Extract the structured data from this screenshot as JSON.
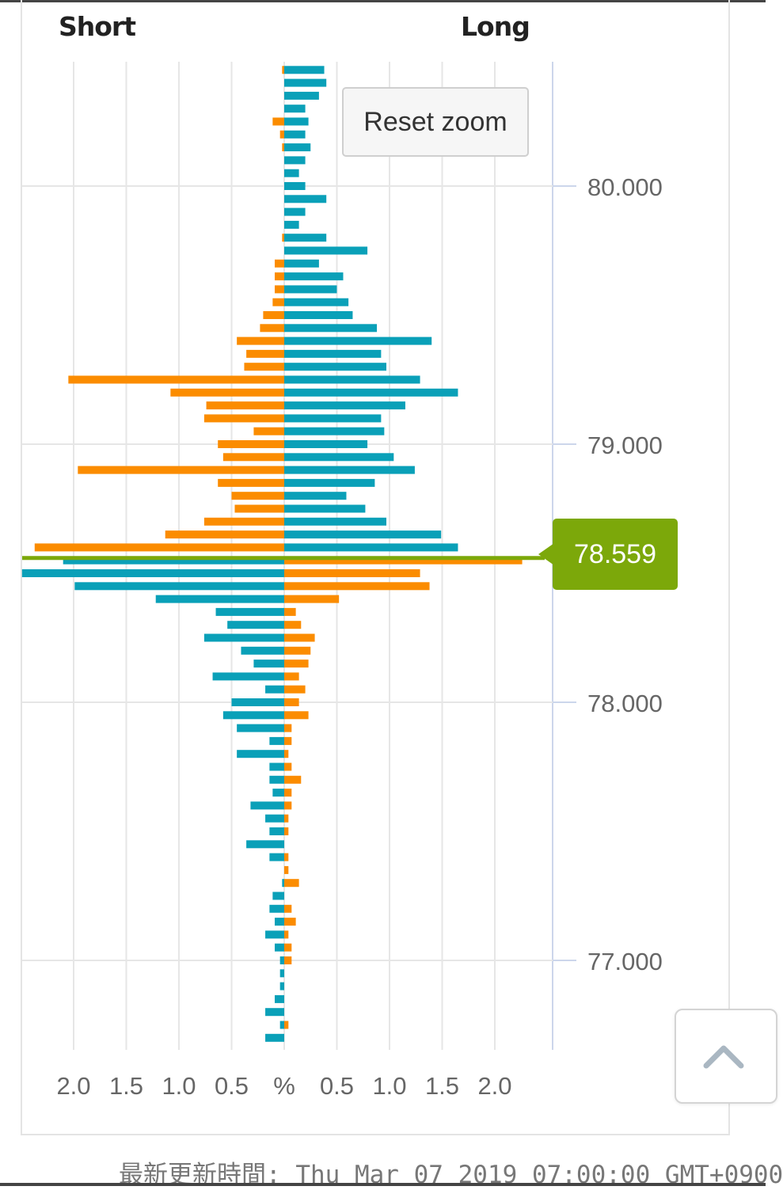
{
  "header": {
    "short_label": "Short",
    "long_label": "Long"
  },
  "reset_button": {
    "label": "Reset zoom"
  },
  "current_price": {
    "label": "78.559",
    "value": 78.559,
    "color": "#7ca80a"
  },
  "footer": {
    "text": "最新更新時間: Thu Mar 07 2019 07:00:00 GMT+0900"
  },
  "colors": {
    "orange": "#fb8c00",
    "teal": "#0aa0b8",
    "grid": "#e6e6e6",
    "axis": "#ccd6eb"
  },
  "chart_data": {
    "type": "bar",
    "title": "",
    "xlabel": "%",
    "ylabel": "",
    "x_tick_labels": [
      "2.0",
      "1.5",
      "1.0",
      "0.5",
      "%",
      "0.5",
      "1.0",
      "1.5",
      "2.0"
    ],
    "y_tick_labels": [
      "80.000",
      "79.000",
      "78.000",
      "77.000"
    ],
    "y_ticks": [
      80.0,
      79.0,
      78.0,
      77.0
    ],
    "ylim": [
      76.69,
      80.47
    ],
    "xlim": [
      -2.5,
      2.5
    ],
    "series": [
      {
        "name": "Short",
        "rows": [
          {
            "price": 80.45,
            "value": 0.02
          },
          {
            "price": 80.25,
            "value": 0.11
          },
          {
            "price": 80.2,
            "value": 0.04
          },
          {
            "price": 80.15,
            "value": 0.02
          },
          {
            "price": 79.8,
            "value": 0.02
          },
          {
            "price": 79.7,
            "value": 0.09
          },
          {
            "price": 79.65,
            "value": 0.09
          },
          {
            "price": 79.6,
            "value": 0.09
          },
          {
            "price": 79.55,
            "value": 0.11
          },
          {
            "price": 79.5,
            "value": 0.2
          },
          {
            "price": 79.45,
            "value": 0.23
          },
          {
            "price": 79.4,
            "value": 0.45
          },
          {
            "price": 79.35,
            "value": 0.36
          },
          {
            "price": 79.3,
            "value": 0.38
          },
          {
            "price": 79.25,
            "value": 2.05
          },
          {
            "price": 79.2,
            "value": 1.08
          },
          {
            "price": 79.15,
            "value": 0.74
          },
          {
            "price": 79.1,
            "value": 0.76
          },
          {
            "price": 79.05,
            "value": 0.29
          },
          {
            "price": 79.0,
            "value": 0.63
          },
          {
            "price": 78.95,
            "value": 0.58
          },
          {
            "price": 78.9,
            "value": 1.96
          },
          {
            "price": 78.85,
            "value": 0.63
          },
          {
            "price": 78.8,
            "value": 0.5
          },
          {
            "price": 78.75,
            "value": 0.47
          },
          {
            "price": 78.7,
            "value": 0.76
          },
          {
            "price": 78.65,
            "value": 1.13
          },
          {
            "price": 78.6,
            "value": 2.37
          },
          {
            "price": 78.55,
            "value": 2.1
          },
          {
            "price": 78.5,
            "value": 2.49
          },
          {
            "price": 78.45,
            "value": 1.99
          },
          {
            "price": 78.4,
            "value": 1.22
          },
          {
            "price": 78.35,
            "value": 0.65
          },
          {
            "price": 78.3,
            "value": 0.54
          },
          {
            "price": 78.25,
            "value": 0.76
          },
          {
            "price": 78.2,
            "value": 0.41
          },
          {
            "price": 78.15,
            "value": 0.29
          },
          {
            "price": 78.1,
            "value": 0.68
          },
          {
            "price": 78.05,
            "value": 0.18
          },
          {
            "price": 78.0,
            "value": 0.5
          },
          {
            "price": 77.95,
            "value": 0.58
          },
          {
            "price": 77.9,
            "value": 0.45
          },
          {
            "price": 77.85,
            "value": 0.14
          },
          {
            "price": 77.8,
            "value": 0.45
          },
          {
            "price": 77.75,
            "value": 0.14
          },
          {
            "price": 77.7,
            "value": 0.14
          },
          {
            "price": 77.65,
            "value": 0.11
          },
          {
            "price": 77.6,
            "value": 0.32
          },
          {
            "price": 77.55,
            "value": 0.18
          },
          {
            "price": 77.5,
            "value": 0.14
          },
          {
            "price": 77.45,
            "value": 0.36
          },
          {
            "price": 77.4,
            "value": 0.14
          },
          {
            "price": 77.3,
            "value": 0.02
          },
          {
            "price": 77.25,
            "value": 0.11
          },
          {
            "price": 77.2,
            "value": 0.14
          },
          {
            "price": 77.15,
            "value": 0.09
          },
          {
            "price": 77.1,
            "value": 0.18
          },
          {
            "price": 77.05,
            "value": 0.09
          },
          {
            "price": 77.0,
            "value": 0.04
          },
          {
            "price": 76.95,
            "value": 0.04
          },
          {
            "price": 76.9,
            "value": 0.04
          },
          {
            "price": 76.85,
            "value": 0.09
          },
          {
            "price": 76.8,
            "value": 0.18
          },
          {
            "price": 76.75,
            "value": 0.04
          },
          {
            "price": 76.7,
            "value": 0.18
          }
        ]
      },
      {
        "name": "Long",
        "rows": [
          {
            "price": 80.45,
            "value": 0.38
          },
          {
            "price": 80.4,
            "value": 0.4
          },
          {
            "price": 80.35,
            "value": 0.33
          },
          {
            "price": 80.3,
            "value": 0.2
          },
          {
            "price": 80.25,
            "value": 0.23
          },
          {
            "price": 80.2,
            "value": 0.2
          },
          {
            "price": 80.15,
            "value": 0.25
          },
          {
            "price": 80.1,
            "value": 0.2
          },
          {
            "price": 80.05,
            "value": 0.14
          },
          {
            "price": 80.0,
            "value": 0.2
          },
          {
            "price": 79.95,
            "value": 0.4
          },
          {
            "price": 79.9,
            "value": 0.2
          },
          {
            "price": 79.85,
            "value": 0.14
          },
          {
            "price": 79.8,
            "value": 0.4
          },
          {
            "price": 79.75,
            "value": 0.79
          },
          {
            "price": 79.7,
            "value": 0.33
          },
          {
            "price": 79.65,
            "value": 0.56
          },
          {
            "price": 79.6,
            "value": 0.5
          },
          {
            "price": 79.55,
            "value": 0.61
          },
          {
            "price": 79.5,
            "value": 0.65
          },
          {
            "price": 79.45,
            "value": 0.88
          },
          {
            "price": 79.4,
            "value": 1.4
          },
          {
            "price": 79.35,
            "value": 0.92
          },
          {
            "price": 79.3,
            "value": 0.97
          },
          {
            "price": 79.25,
            "value": 1.29
          },
          {
            "price": 79.2,
            "value": 1.65
          },
          {
            "price": 79.15,
            "value": 1.15
          },
          {
            "price": 79.1,
            "value": 0.92
          },
          {
            "price": 79.05,
            "value": 0.95
          },
          {
            "price": 79.0,
            "value": 0.79
          },
          {
            "price": 78.95,
            "value": 1.04
          },
          {
            "price": 78.9,
            "value": 1.24
          },
          {
            "price": 78.85,
            "value": 0.86
          },
          {
            "price": 78.8,
            "value": 0.59
          },
          {
            "price": 78.75,
            "value": 0.77
          },
          {
            "price": 78.7,
            "value": 0.97
          },
          {
            "price": 78.65,
            "value": 1.49
          },
          {
            "price": 78.6,
            "value": 1.65
          },
          {
            "price": 78.55,
            "value": 2.26
          },
          {
            "price": 78.5,
            "value": 1.29
          },
          {
            "price": 78.45,
            "value": 1.38
          },
          {
            "price": 78.4,
            "value": 0.52
          },
          {
            "price": 78.35,
            "value": 0.11
          },
          {
            "price": 78.3,
            "value": 0.16
          },
          {
            "price": 78.25,
            "value": 0.29
          },
          {
            "price": 78.2,
            "value": 0.25
          },
          {
            "price": 78.15,
            "value": 0.23
          },
          {
            "price": 78.1,
            "value": 0.14
          },
          {
            "price": 78.05,
            "value": 0.2
          },
          {
            "price": 78.0,
            "value": 0.14
          },
          {
            "price": 77.95,
            "value": 0.23
          },
          {
            "price": 77.9,
            "value": 0.07
          },
          {
            "price": 77.85,
            "value": 0.07
          },
          {
            "price": 77.8,
            "value": 0.04
          },
          {
            "price": 77.75,
            "value": 0.07
          },
          {
            "price": 77.7,
            "value": 0.16
          },
          {
            "price": 77.65,
            "value": 0.07
          },
          {
            "price": 77.6,
            "value": 0.07
          },
          {
            "price": 77.55,
            "value": 0.04
          },
          {
            "price": 77.5,
            "value": 0.04
          },
          {
            "price": 77.4,
            "value": 0.04
          },
          {
            "price": 77.35,
            "value": 0.04
          },
          {
            "price": 77.3,
            "value": 0.14
          },
          {
            "price": 77.2,
            "value": 0.07
          },
          {
            "price": 77.15,
            "value": 0.11
          },
          {
            "price": 77.1,
            "value": 0.04
          },
          {
            "price": 77.05,
            "value": 0.07
          },
          {
            "price": 77.0,
            "value": 0.07
          },
          {
            "price": 76.75,
            "value": 0.04
          }
        ]
      }
    ],
    "current_price_line": 78.559,
    "grid": true,
    "legend": "none"
  }
}
